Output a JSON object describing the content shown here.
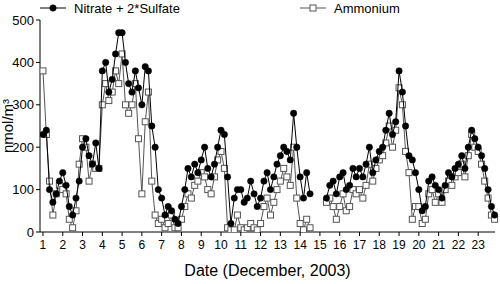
{
  "chart_data": {
    "type": "line",
    "x_label": "Date (December, 2003)",
    "y_label": "nmol/m³",
    "xlim": [
      0.85,
      23.85
    ],
    "xticks": [
      1,
      2,
      3,
      4,
      5,
      6,
      7,
      8,
      9,
      10,
      11,
      12,
      13,
      14,
      15,
      16,
      17,
      18,
      19,
      20,
      21,
      22,
      23
    ],
    "ylim": [
      0,
      500
    ],
    "yticks": [
      0,
      100,
      200,
      300,
      400,
      500
    ],
    "grid": false,
    "legend": "top",
    "x": [
      1,
      1.17,
      1.33,
      1.5,
      1.67,
      1.83,
      2,
      2.17,
      2.33,
      2.5,
      2.67,
      2.83,
      3,
      3.17,
      3.33,
      3.5,
      3.67,
      3.83,
      4,
      4.17,
      4.33,
      4.5,
      4.67,
      4.83,
      5,
      5.17,
      5.33,
      5.5,
      5.67,
      5.83,
      6,
      6.17,
      6.33,
      6.5,
      6.67,
      6.83,
      7,
      7.17,
      7.33,
      7.5,
      7.67,
      7.83,
      8,
      8.17,
      8.33,
      8.5,
      8.67,
      8.83,
      9,
      9.17,
      9.33,
      9.5,
      9.67,
      9.83,
      10,
      10.17,
      10.33,
      10.5,
      10.67,
      10.83,
      11,
      11.17,
      11.33,
      11.5,
      11.67,
      11.83,
      12,
      12.17,
      12.33,
      12.5,
      12.67,
      12.83,
      13,
      13.17,
      13.33,
      13.5,
      13.67,
      13.83,
      14,
      14.17,
      14.33,
      14.5,
      14.67,
      14.83,
      15,
      15.17,
      15.33,
      15.5,
      15.67,
      15.83,
      16,
      16.17,
      16.33,
      16.5,
      16.67,
      16.83,
      17,
      17.17,
      17.33,
      17.5,
      17.67,
      17.83,
      18,
      18.17,
      18.33,
      18.5,
      18.67,
      18.83,
      19,
      19.17,
      19.33,
      19.5,
      19.67,
      19.83,
      20,
      20.17,
      20.33,
      20.5,
      20.67,
      20.83,
      21,
      21.17,
      21.33,
      21.5,
      21.67,
      21.83,
      22,
      22.17,
      22.33,
      22.5,
      22.67,
      22.83,
      23,
      23.17,
      23.33,
      23.5,
      23.67,
      23.83
    ],
    "series": [
      {
        "name": "Nitrate + 2*Sulfate",
        "color": "#000000",
        "marker": "circle",
        "line_style": "solid",
        "values": [
          230,
          240,
          100,
          70,
          90,
          120,
          140,
          110,
          60,
          40,
          80,
          120,
          200,
          220,
          180,
          160,
          210,
          150,
          380,
          400,
          330,
          360,
          420,
          470,
          470,
          400,
          350,
          330,
          380,
          340,
          300,
          390,
          380,
          250,
          200,
          100,
          80,
          40,
          60,
          50,
          30,
          20,
          60,
          100,
          150,
          130,
          160,
          140,
          170,
          200,
          150,
          130,
          160,
          200,
          240,
          230,
          130,
          20,
          80,
          100,
          100,
          70,
          80,
          120,
          90,
          60,
          80,
          120,
          140,
          100,
          130,
          160,
          180,
          200,
          190,
          170,
          280,
          200,
          130,
          80,
          140,
          90,
          null,
          null,
          null,
          null,
          80,
          110,
          120,
          90,
          130,
          140,
          100,
          110,
          150,
          130,
          150,
          130,
          160,
          200,
          140,
          170,
          190,
          200,
          240,
          280,
          230,
          260,
          380,
          330,
          250,
          180,
          170,
          140,
          100,
          50,
          60,
          120,
          130,
          110,
          100,
          80,
          110,
          140,
          130,
          150,
          160,
          180,
          150,
          200,
          240,
          220,
          200,
          180,
          150,
          100,
          60,
          40
        ]
      },
      {
        "name": "Ammonium",
        "color": "#555555",
        "marker": "square",
        "line_style": "solid",
        "values": [
          380,
          230,
          120,
          40,
          90,
          110,
          100,
          90,
          30,
          10,
          50,
          160,
          220,
          200,
          120,
          160,
          150,
          150,
          300,
          350,
          310,
          330,
          380,
          350,
          420,
          300,
          280,
          300,
          350,
          220,
          90,
          260,
          330,
          120,
          40,
          20,
          30,
          10,
          20,
          40,
          10,
          10,
          30,
          60,
          90,
          80,
          110,
          120,
          140,
          130,
          100,
          90,
          130,
          170,
          190,
          150,
          10,
          5,
          5,
          40,
          10,
          5,
          10,
          20,
          10,
          5,
          20,
          60,
          80,
          40,
          70,
          100,
          120,
          150,
          130,
          110,
          200,
          80,
          20,
          5,
          30,
          10,
          null,
          null,
          null,
          null,
          70,
          80,
          60,
          30,
          60,
          90,
          50,
          60,
          100,
          90,
          100,
          80,
          110,
          160,
          120,
          150,
          170,
          180,
          210,
          250,
          200,
          240,
          340,
          300,
          190,
          140,
          30,
          60,
          60,
          20,
          30,
          90,
          100,
          70,
          90,
          70,
          100,
          120,
          110,
          130,
          140,
          160,
          130,
          180,
          230,
          200,
          190,
          160,
          120,
          80,
          40,
          30
        ]
      }
    ]
  }
}
